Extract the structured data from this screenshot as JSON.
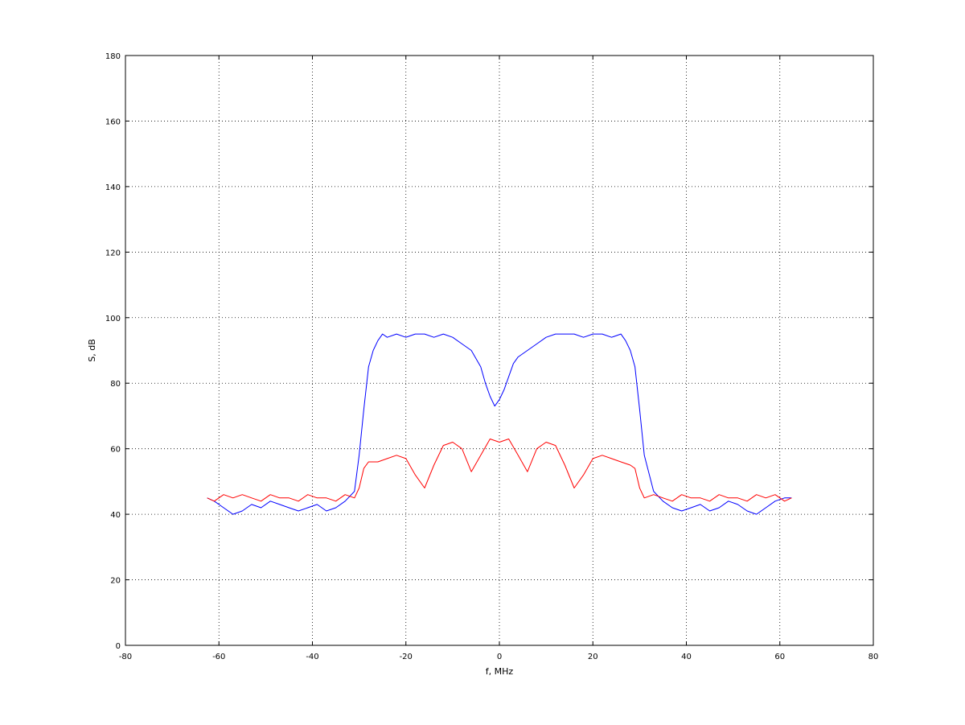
{
  "chart_data": {
    "type": "line",
    "title": "",
    "xlabel": "f, MHz",
    "ylabel": "S, dB",
    "xlim": [
      -80,
      80
    ],
    "ylim": [
      0,
      180
    ],
    "xticks": [
      -80,
      -60,
      -40,
      -20,
      0,
      20,
      40,
      60,
      80
    ],
    "yticks": [
      0,
      20,
      40,
      60,
      80,
      100,
      120,
      140,
      160,
      180
    ],
    "grid": true,
    "series": [
      {
        "color": "#0000ff",
        "x": [
          -62.5,
          -61,
          -59,
          -57,
          -55,
          -53,
          -51,
          -49,
          -47,
          -45,
          -43,
          -41,
          -39,
          -37,
          -35,
          -33,
          -31,
          -30,
          -29,
          -28,
          -27,
          -26,
          -25,
          -24,
          -22,
          -20,
          -18,
          -16,
          -14,
          -12,
          -10,
          -8,
          -6,
          -4,
          -3,
          -2,
          -1,
          0,
          1,
          2,
          3,
          4,
          6,
          8,
          10,
          12,
          14,
          16,
          18,
          20,
          22,
          24,
          26,
          27,
          28,
          29,
          30,
          31,
          33,
          35,
          37,
          39,
          41,
          43,
          45,
          47,
          49,
          51,
          53,
          55,
          57,
          59,
          61,
          62.5
        ],
        "values": [
          45,
          44,
          42,
          40,
          41,
          43,
          42,
          44,
          43,
          42,
          41,
          42,
          43,
          41,
          42,
          44,
          47,
          58,
          72,
          85,
          90,
          93,
          95,
          94,
          95,
          94,
          95,
          95,
          94,
          95,
          94,
          92,
          90,
          85,
          80,
          76,
          73,
          75,
          78,
          82,
          86,
          88,
          90,
          92,
          94,
          95,
          95,
          95,
          94,
          95,
          95,
          94,
          95,
          93,
          90,
          85,
          72,
          58,
          47,
          44,
          42,
          41,
          42,
          43,
          41,
          42,
          44,
          43,
          41,
          40,
          42,
          44,
          45,
          45
        ]
      },
      {
        "color": "#ff0000",
        "x": [
          -62.5,
          -61,
          -59,
          -57,
          -55,
          -53,
          -51,
          -49,
          -47,
          -45,
          -43,
          -41,
          -39,
          -37,
          -35,
          -33,
          -31,
          -30,
          -29,
          -28,
          -26,
          -24,
          -22,
          -20,
          -18,
          -16,
          -14,
          -12,
          -10,
          -8,
          -6,
          -4,
          -2,
          0,
          2,
          4,
          6,
          8,
          10,
          12,
          14,
          16,
          18,
          20,
          22,
          24,
          26,
          28,
          29,
          30,
          31,
          33,
          35,
          37,
          39,
          41,
          43,
          45,
          47,
          49,
          51,
          53,
          55,
          57,
          59,
          61,
          62.5
        ],
        "values": [
          45,
          44,
          46,
          45,
          46,
          45,
          44,
          46,
          45,
          45,
          44,
          46,
          45,
          45,
          44,
          46,
          45,
          48,
          54,
          56,
          56,
          57,
          58,
          57,
          52,
          48,
          55,
          61,
          62,
          60,
          53,
          58,
          63,
          62,
          63,
          58,
          53,
          60,
          62,
          61,
          55,
          48,
          52,
          57,
          58,
          57,
          56,
          55,
          54,
          48,
          45,
          46,
          45,
          44,
          46,
          45,
          45,
          44,
          46,
          45,
          45,
          44,
          46,
          45,
          46,
          44,
          45
        ]
      }
    ]
  }
}
